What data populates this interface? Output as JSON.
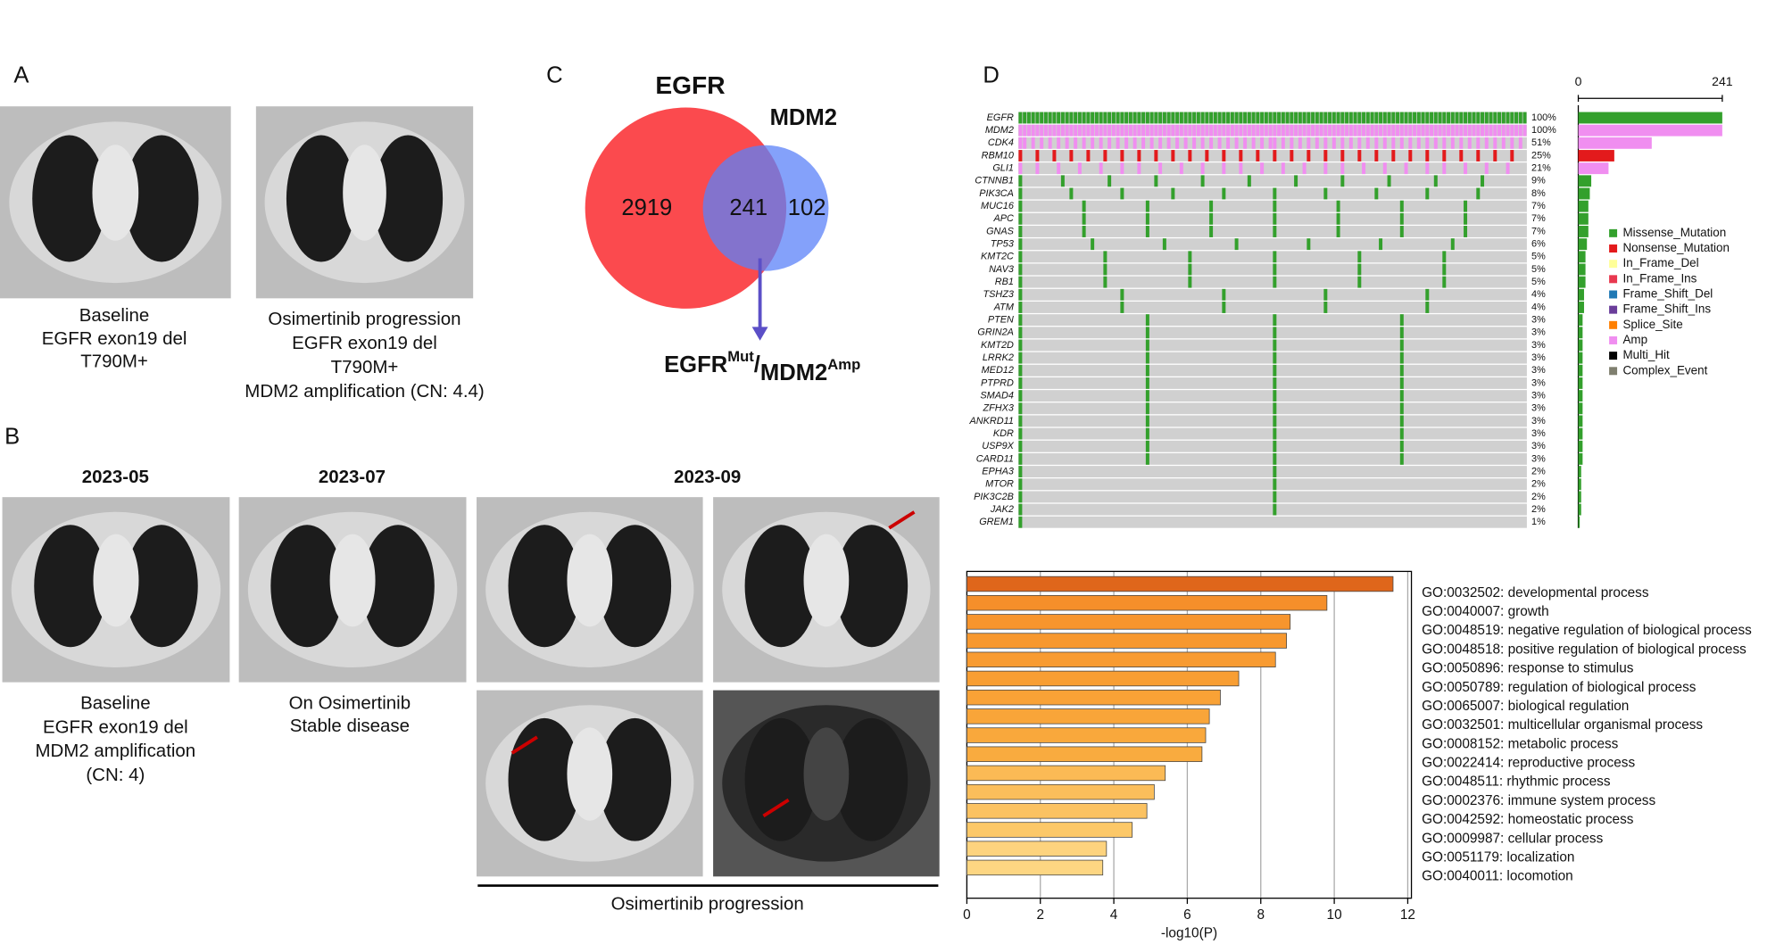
{
  "panel_labels": [
    "A",
    "B",
    "C",
    "D"
  ],
  "panel_a": {
    "captions": [
      [
        "Baseline",
        "EGFR exon19 del",
        "T790M+"
      ],
      [
        "Osimertinib progression",
        "EGFR exon19 del",
        "T790M+",
        "MDM2 amplification (CN: 4.4)"
      ]
    ]
  },
  "panel_b": {
    "dates": [
      "2023-05",
      "2023-07",
      "2023-09"
    ],
    "captions": [
      [
        "Baseline",
        "EGFR exon19 del",
        "MDM2 amplification",
        "(CN: 4)"
      ],
      [
        "On Osimertinib",
        "Stable disease"
      ]
    ],
    "progression_label": "Osimertinib progression"
  },
  "panel_c": {
    "sets": [
      {
        "name": "EGFR",
        "color": "#fb4a4e"
      },
      {
        "name": "MDM2",
        "color": "#5b82f8"
      }
    ],
    "only_egfr": 2919,
    "overlap": 241,
    "only_mdm2": 102,
    "result_label": {
      "gene1": "EGFR",
      "sup1": "Mut",
      "sep": "/",
      "gene2": "MDM2",
      "sup2": "Amp"
    }
  },
  "panel_d": {
    "genes": [
      "EGFR",
      "MDM2",
      "CDK4",
      "RBM10",
      "GLI1",
      "CTNNB1",
      "PIK3CA",
      "MUC16",
      "APC",
      "GNAS",
      "TP53",
      "KMT2C",
      "NAV3",
      "RB1",
      "TSHZ3",
      "ATM",
      "PTEN",
      "GRIN2A",
      "KMT2D",
      "LRRK2",
      "MED12",
      "PTPRD",
      "SMAD4",
      "ZFHX3",
      "ANKRD11",
      "KDR",
      "USP9X",
      "CARD11",
      "EPHA3",
      "MTOR",
      "PIK3C2B",
      "JAK2",
      "GREM1"
    ],
    "values": [
      100,
      100,
      51,
      25,
      21,
      9,
      8,
      7,
      7,
      7,
      6,
      5,
      5,
      5,
      4,
      4,
      3,
      3,
      3,
      3,
      3,
      3,
      3,
      3,
      3,
      3,
      3,
      3,
      2,
      2,
      2,
      2,
      1
    ],
    "value_labels": [
      "100%",
      "100%",
      "51%",
      "25%",
      "21%",
      "9%",
      "8%",
      "7%",
      "7%",
      "7%",
      "6%",
      "5%",
      "5%",
      "5%",
      "4%",
      "4%",
      "3%",
      "3%",
      "3%",
      "3%",
      "3%",
      "3%",
      "3%",
      "3%",
      "3%",
      "3%",
      "3%",
      "3%",
      "2%",
      "2%",
      "2%",
      "2%",
      "1%"
    ],
    "colors": [
      "#33a02c",
      "#f08ef0",
      "#f08ef0",
      "#e31a1c",
      "#f08ef0",
      "#33a02c",
      "#33a02c",
      "#33a02c",
      "#33a02c",
      "#33a02c",
      "#33a02c",
      "#33a02c",
      "#33a02c",
      "#33a02c",
      "#33a02c",
      "#33a02c",
      "#33a02c",
      "#33a02c",
      "#33a02c",
      "#33a02c",
      "#33a02c",
      "#33a02c",
      "#33a02c",
      "#33a02c",
      "#33a02c",
      "#33a02c",
      "#33a02c",
      "#33a02c",
      "#33a02c",
      "#33a02c",
      "#33a02c",
      "#33a02c",
      "#33a02c"
    ],
    "bar_axis_ticks": [
      0,
      241
    ],
    "legend": [
      {
        "name": "Missense_Mutation",
        "color": "#33a02c"
      },
      {
        "name": "Nonsense_Mutation",
        "color": "#e31a1c"
      },
      {
        "name": "In_Frame_Del",
        "color": "#ffff99"
      },
      {
        "name": "In_Frame_Ins",
        "color": "#e8384f"
      },
      {
        "name": "Frame_Shift_Del",
        "color": "#1f78b4"
      },
      {
        "name": "Frame_Shift_Ins",
        "color": "#6a3d9a"
      },
      {
        "name": "Splice_Site",
        "color": "#ff7f00"
      },
      {
        "name": "Amp",
        "color": "#f08ef0"
      },
      {
        "name": "Multi_Hit",
        "color": "#000000"
      },
      {
        "name": "Complex_Event",
        "color": "#7f7f6f"
      }
    ]
  },
  "go_chart": {
    "type": "bar",
    "orientation": "horizontal",
    "categories": [
      "GO:0032502: developmental process",
      "GO:0040007: growth",
      "GO:0048519: negative regulation of biological process",
      "GO:0048518: positive regulation of biological process",
      "GO:0050896: response to stimulus",
      "GO:0050789: regulation of biological process",
      "GO:0065007: biological regulation",
      "GO:0032501: multicellular organismal process",
      "GO:0008152: metabolic process",
      "GO:0022414: reproductive process",
      "GO:0048511: rhythmic process",
      "GO:0002376: immune system process",
      "GO:0042592: homeostatic process",
      "GO:0009987: cellular process",
      "GO:0051179: localization",
      "GO:0040011: locomotion"
    ],
    "values": [
      11.6,
      9.8,
      8.8,
      8.7,
      8.4,
      7.4,
      6.9,
      6.6,
      6.5,
      6.4,
      5.4,
      5.1,
      4.9,
      4.5,
      3.8,
      3.7
    ],
    "colors": [
      "#df661b",
      "#f58f2a",
      "#f7952d",
      "#f7982f",
      "#f89b31",
      "#f89e33",
      "#f9a236",
      "#f9a539",
      "#f9a83c",
      "#f9ab3f",
      "#fbba55",
      "#fbbe5b",
      "#fbc262",
      "#fcc868",
      "#fdd37e",
      "#fdd682"
    ],
    "xlim": [
      0,
      12.1
    ],
    "xticks": [
      0,
      2,
      4,
      6,
      8,
      10,
      12
    ],
    "xlabel": "-log10(P)",
    "grid": true
  }
}
